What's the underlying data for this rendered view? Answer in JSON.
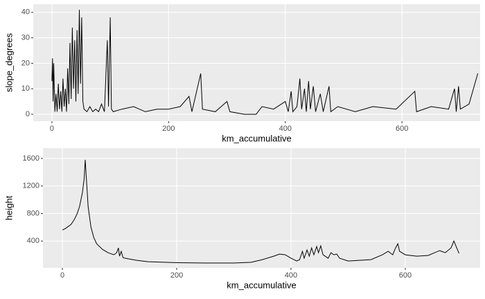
{
  "chart_data": [
    {
      "type": "line",
      "x_label": "km_accumulative",
      "y_label": "slope_degrees",
      "color": "#000000",
      "grid": true,
      "xlim": [
        -32,
        734
      ],
      "ylim": [
        -2.7,
        43.2
      ],
      "xticks": [
        0,
        200,
        400,
        600
      ],
      "yticks": [
        0,
        10,
        20,
        30,
        40
      ],
      "x": [
        0,
        1,
        2,
        3,
        5,
        7,
        9,
        11,
        13,
        15,
        17,
        19,
        21,
        23,
        25,
        27,
        29,
        31,
        33,
        35,
        37,
        39,
        41,
        43,
        45,
        47,
        49,
        51,
        53,
        55,
        60,
        65,
        70,
        75,
        80,
        85,
        90,
        95,
        97,
        100,
        102,
        105,
        120,
        140,
        160,
        180,
        200,
        220,
        235,
        240,
        255,
        258,
        280,
        300,
        305,
        330,
        350,
        360,
        380,
        400,
        405,
        410,
        413,
        420,
        425,
        428,
        433,
        436,
        440,
        443,
        448,
        452,
        460,
        465,
        475,
        478,
        490,
        520,
        550,
        590,
        622,
        625,
        650,
        680,
        690,
        693,
        697,
        700,
        715,
        730
      ],
      "values": [
        13,
        22,
        5,
        20,
        1,
        8,
        1,
        12,
        2,
        9,
        1,
        14,
        3,
        10,
        1,
        18,
        4,
        28,
        6,
        34,
        10,
        29,
        5,
        33,
        8,
        41,
        12,
        38,
        5,
        2,
        1,
        3,
        1,
        2,
        1,
        4,
        1,
        29,
        3,
        38,
        2,
        1,
        2,
        3,
        1,
        2,
        2,
        3,
        7,
        1,
        16,
        2,
        1,
        5,
        1,
        0,
        0,
        3,
        2,
        5,
        1,
        9,
        1,
        3,
        14,
        2,
        10,
        1,
        13,
        2,
        11,
        1,
        8,
        1,
        11,
        1,
        3,
        1,
        3,
        2,
        9,
        1,
        3,
        2,
        10,
        1,
        11,
        2,
        4,
        16
      ]
    },
    {
      "type": "line",
      "x_label": "km_accumulative",
      "y_label": "height",
      "color": "#000000",
      "grid": true,
      "xlim": [
        -34,
        731
      ],
      "ylim": [
        10,
        1750
      ],
      "xticks": [
        0,
        200,
        400,
        600
      ],
      "yticks": [
        400,
        800,
        1200,
        1600
      ],
      "x": [
        0,
        5,
        10,
        15,
        20,
        25,
        30,
        35,
        38,
        40,
        42,
        45,
        50,
        55,
        60,
        70,
        80,
        90,
        95,
        98,
        100,
        103,
        106,
        110,
        130,
        150,
        200,
        250,
        300,
        330,
        350,
        370,
        380,
        390,
        400,
        410,
        415,
        420,
        423,
        428,
        432,
        436,
        440,
        445,
        448,
        452,
        456,
        465,
        470,
        475,
        480,
        485,
        500,
        520,
        540,
        560,
        570,
        578,
        583,
        587,
        590,
        600,
        620,
        640,
        660,
        670,
        680,
        685,
        690,
        694
      ],
      "values": [
        560,
        580,
        610,
        640,
        700,
        780,
        900,
        1100,
        1300,
        1580,
        1300,
        900,
        600,
        450,
        360,
        280,
        230,
        200,
        230,
        300,
        180,
        250,
        160,
        150,
        120,
        100,
        85,
        80,
        80,
        90,
        130,
        180,
        210,
        200,
        150,
        110,
        130,
        250,
        150,
        270,
        180,
        300,
        200,
        320,
        230,
        330,
        200,
        150,
        230,
        200,
        210,
        150,
        110,
        120,
        130,
        200,
        250,
        200,
        300,
        360,
        250,
        200,
        180,
        190,
        260,
        230,
        300,
        400,
        300,
        220
      ]
    }
  ]
}
